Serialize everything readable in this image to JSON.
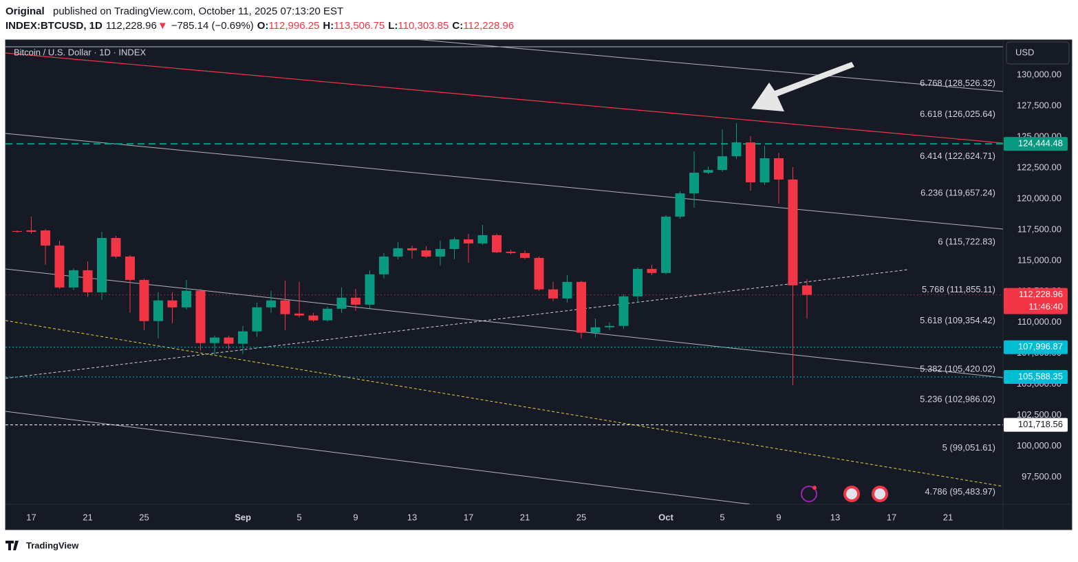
{
  "header": {
    "author": "Original",
    "published": "published on TradingView.com, October 11, 2025 07:13:20 EST",
    "quote": {
      "symbol": "INDEX:BTCUSD, 1D",
      "last": "112,228.96",
      "arrow": "▼",
      "change": "−785.14 (−0.69%)",
      "fields": [
        {
          "key": "O:",
          "value": "112,996.25"
        },
        {
          "key": "H:",
          "value": "113,506.75"
        },
        {
          "key": "L:",
          "value": "110,303.85"
        },
        {
          "key": "C:",
          "value": "112,228.96"
        }
      ]
    }
  },
  "chart_data": {
    "type": "candlestick",
    "title": "Bitcoin / U.S. Dollar · 1D · INDEX",
    "currency": "USD",
    "x": [
      "Aug 16",
      "Aug 17",
      "Aug 18",
      "Aug 19",
      "Aug 20",
      "Aug 21",
      "Aug 22",
      "Aug 23",
      "Aug 24",
      "Aug 25",
      "Aug 26",
      "Aug 27",
      "Aug 28",
      "Aug 29",
      "Aug 30",
      "Aug 31",
      "Sep 1",
      "Sep 2",
      "Sep 3",
      "Sep 4",
      "Sep 5",
      "Sep 6",
      "Sep 7",
      "Sep 8",
      "Sep 9",
      "Sep 10",
      "Sep 11",
      "Sep 12",
      "Sep 13",
      "Sep 14",
      "Sep 15",
      "Sep 16",
      "Sep 17",
      "Sep 18",
      "Sep 19",
      "Sep 20",
      "Sep 21",
      "Sep 22",
      "Sep 23",
      "Sep 24",
      "Sep 25",
      "Sep 26",
      "Sep 27",
      "Sep 28",
      "Sep 29",
      "Sep 30",
      "Oct 1",
      "Oct 2",
      "Oct 3",
      "Oct 4",
      "Oct 5",
      "Oct 6",
      "Oct 7",
      "Oct 8",
      "Oct 9",
      "Oct 10",
      "Oct 11"
    ],
    "open": [
      117390,
      117450,
      117440,
      116220,
      112830,
      114220,
      112440,
      116830,
      115330,
      113440,
      110110,
      111780,
      111220,
      112560,
      108330,
      108780,
      108280,
      109280,
      111220,
      111780,
      110720,
      110560,
      110170,
      111110,
      112000,
      111440,
      113890,
      115330,
      116000,
      115830,
      115330,
      115940,
      116720,
      116390,
      117060,
      115720,
      115610,
      115220,
      112670,
      111940,
      113280,
      109170,
      109610,
      109720,
      112110,
      114330,
      114000,
      118560,
      120440,
      122110,
      122330,
      123440,
      124560,
      121330,
      123280,
      121560,
      112996.25
    ],
    "high": [
      117450,
      118560,
      117560,
      116610,
      114390,
      114940,
      117330,
      117000,
      115440,
      113560,
      112440,
      112440,
      113440,
      112720,
      108940,
      108940,
      109720,
      111610,
      112560,
      113390,
      113280,
      110780,
      111280,
      112830,
      112720,
      114220,
      115610,
      116500,
      116220,
      116170,
      116610,
      116890,
      117170,
      117890,
      117170,
      115890,
      115830,
      115330,
      113280,
      113830,
      113390,
      110330,
      110000,
      112280,
      114440,
      114670,
      118670,
      120610,
      123830,
      122610,
      125610,
      126110,
      125060,
      124280,
      123720,
      122560,
      113506.75
    ],
    "low": [
      117270,
      117170,
      114670,
      112720,
      112610,
      112060,
      111830,
      115170,
      110780,
      109390,
      108720,
      109940,
      111060,
      107720,
      107330,
      107830,
      107440,
      108830,
      110780,
      109390,
      110390,
      110060,
      110060,
      110780,
      110940,
      111060,
      113560,
      115110,
      115170,
      115220,
      114610,
      115110,
      114830,
      116280,
      115610,
      115500,
      115110,
      112560,
      111720,
      111610,
      108720,
      108780,
      109390,
      109500,
      111610,
      113830,
      113890,
      118390,
      119280,
      122000,
      122170,
      123220,
      120670,
      121110,
      119610,
      104940,
      110303.85
    ],
    "close": [
      117330,
      117330,
      116220,
      112830,
      114220,
      112440,
      116830,
      115330,
      113440,
      110110,
      111780,
      111220,
      112560,
      108330,
      108780,
      108280,
      109280,
      111220,
      111780,
      110670,
      110560,
      110170,
      111110,
      112000,
      111440,
      113890,
      115330,
      116000,
      115830,
      115330,
      115940,
      116720,
      116390,
      117060,
      115670,
      115610,
      115220,
      112670,
      111940,
      113280,
      109170,
      109610,
      109720,
      112110,
      114330,
      114000,
      118560,
      120440,
      122110,
      122330,
      123440,
      124560,
      121330,
      123280,
      121560,
      113000,
      112228.96
    ],
    "colors": {
      "up": "#089981",
      "down": "#f23645"
    },
    "ylim": [
      95300,
      132850
    ],
    "yticks": [
      {
        "value": 97500,
        "label": "97,500.00"
      },
      {
        "value": 100000,
        "label": "100,000.00"
      },
      {
        "value": 102500,
        "label": "102,500.00"
      },
      {
        "value": 105000,
        "label": "105,000.00"
      },
      {
        "value": 107500,
        "label": "107,500.00"
      },
      {
        "value": 110000,
        "label": "110,000.00"
      },
      {
        "value": 112500,
        "label": "112,500.00"
      },
      {
        "value": 115000,
        "label": "115,000.00"
      },
      {
        "value": 117500,
        "label": "117,500.00"
      },
      {
        "value": 120000,
        "label": "120,000.00"
      },
      {
        "value": 122500,
        "label": "122,500.00"
      },
      {
        "value": 125000,
        "label": "125,000.00"
      },
      {
        "value": 127500,
        "label": "127,500.00"
      },
      {
        "value": 130000,
        "label": "130,000.00"
      }
    ],
    "xticks": [
      {
        "value": "Aug 17",
        "label": "17"
      },
      {
        "value": "Aug 21",
        "label": "21"
      },
      {
        "value": "Aug 25",
        "label": "25"
      },
      {
        "value": "Sep 1",
        "label": "Sep"
      },
      {
        "value": "Sep 5",
        "label": "5"
      },
      {
        "value": "Sep 9",
        "label": "9"
      },
      {
        "value": "Sep 13",
        "label": "13"
      },
      {
        "value": "Sep 17",
        "label": "17"
      },
      {
        "value": "Sep 21",
        "label": "21"
      },
      {
        "value": "Sep 25",
        "label": "25"
      },
      {
        "value": "Oct 1",
        "label": "Oct"
      },
      {
        "value": "Oct 5",
        "label": "5"
      },
      {
        "value": "Oct 9",
        "label": "9"
      },
      {
        "value": "Oct 13",
        "label": "13"
      },
      {
        "value": "Oct 17",
        "label": "17"
      },
      {
        "value": "Oct 21",
        "label": "21"
      }
    ],
    "levels": [
      {
        "label": "6.768 (128,526.32)",
        "value": 128526.32
      },
      {
        "label": "6.618 (126,025.64)",
        "value": 126025.64
      },
      {
        "label": "6.414 (122,624.71)",
        "value": 122624.71
      },
      {
        "label": "6.236 (119,657.24)",
        "value": 119657.24
      },
      {
        "label": "6 (115,722.83)",
        "value": 115722.83
      },
      {
        "label": "5.768 (111,855.11)",
        "value": 111855.11
      },
      {
        "label": "5.618 (109,354.42)",
        "value": 109354.42
      },
      {
        "label": "5.382 (105,420.02)",
        "value": 105420.02
      },
      {
        "label": "5.236 (102,986.02)",
        "value": 102986.02
      },
      {
        "label": "5 (99,051.61)",
        "value": 99051.61
      },
      {
        "label": "4.786 (95,483.97)",
        "value": 95483.97
      }
    ],
    "price_lines": [
      {
        "value": 124444.48,
        "label": "124,444.48",
        "color": "#089981",
        "style": "dashed"
      },
      {
        "value": 107996.87,
        "label": "107,996.87",
        "color": "#00bcd4",
        "style": "dotted"
      },
      {
        "value": 105588.35,
        "label": "105,588.35",
        "color": "#00bcd4",
        "style": "dotted"
      },
      {
        "value": 101718.56,
        "label": "101,718.56",
        "color": "#ffffff",
        "style": "dashed"
      },
      {
        "value": 112228.96,
        "label": "112,228.96",
        "color": "#f23645",
        "style": "dotted",
        "countdown": "11:46:40"
      }
    ]
  },
  "footer": {
    "brand": "TradingView"
  }
}
